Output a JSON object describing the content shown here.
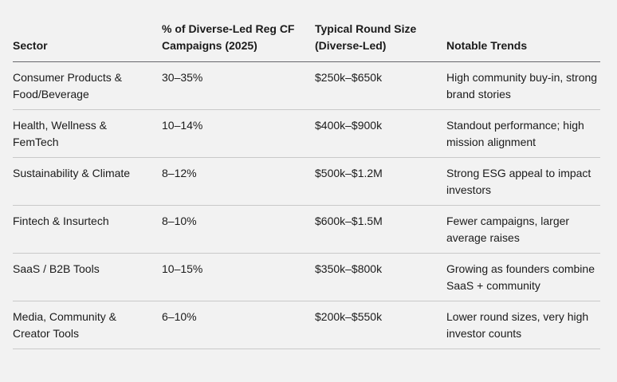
{
  "colors": {
    "background": "#f2f2f2",
    "text": "#1b1b1b",
    "header_rule": "#67676c",
    "row_rule": "#c9c9c9"
  },
  "table": {
    "headers": [
      "Sector",
      "% of Diverse-Led Reg CF Campaigns (2025)",
      "Typical Round Size (Diverse-Led)",
      "Notable Trends"
    ],
    "rows": [
      [
        "Consumer Products & Food/Beverage",
        "30–35%",
        "$250k–$650k",
        "High community buy-in, strong brand stories"
      ],
      [
        "Health, Wellness & FemTech",
        "10–14%",
        "$400k–$900k",
        "Standout performance; high mission alignment"
      ],
      [
        "Sustainability & Climate",
        "8–12%",
        "$500k–$1.2M",
        "Strong ESG appeal to impact investors"
      ],
      [
        "Fintech & Insurtech",
        "8–10%",
        "$600k–$1.5M",
        "Fewer campaigns, larger average raises"
      ],
      [
        "SaaS / B2B Tools",
        "10–15%",
        "$350k–$800k",
        "Growing as founders combine SaaS + community"
      ],
      [
        "Media, Community & Creator Tools",
        "6–10%",
        "$200k–$550k",
        "Lower round sizes, very high investor counts"
      ]
    ]
  }
}
